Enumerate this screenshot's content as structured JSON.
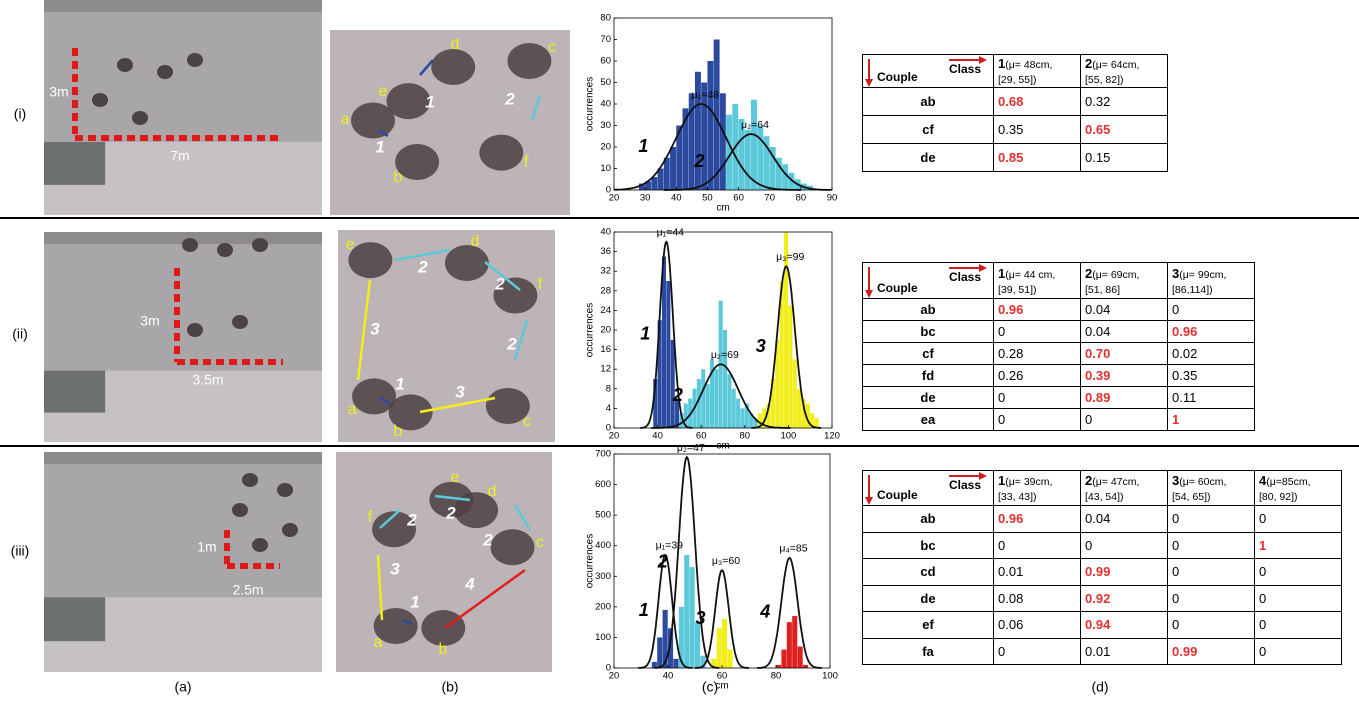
{
  "captions": [
    "(a)",
    "(b)",
    "(c)",
    "(d)"
  ],
  "rows": [
    {
      "label": "(i)",
      "scene": {
        "dims": [
          "3m",
          "7m"
        ]
      },
      "closeup": {
        "people": [
          "d",
          "c",
          "e",
          "a",
          "b",
          "f"
        ],
        "classes": [
          "1",
          "2",
          "1"
        ]
      },
      "table": {
        "corner": [
          "Class",
          "Couple"
        ],
        "columns": [
          {
            "num": "1",
            "desc": "(μ= 48cm,",
            "range": "[29, 55])"
          },
          {
            "num": "2",
            "desc": "(μ= 64cm,",
            "range": "[55, 82])"
          }
        ],
        "rows": [
          {
            "couple": "ab",
            "values": [
              "0.68",
              "0.32"
            ],
            "highlight": 0
          },
          {
            "couple": "cf",
            "values": [
              "0.35",
              "0.65"
            ],
            "highlight": 1
          },
          {
            "couple": "de",
            "values": [
              "0.85",
              "0.15"
            ],
            "highlight": 0
          }
        ]
      }
    },
    {
      "label": "(ii)",
      "scene": {
        "dims": [
          "3m",
          "3.5m"
        ]
      },
      "closeup": {
        "people": [
          "e",
          "d",
          "f",
          "a",
          "b",
          "c"
        ],
        "classes": [
          "2",
          "2",
          "2",
          "3",
          "1",
          "3"
        ]
      },
      "table": {
        "corner": [
          "Class",
          "Couple"
        ],
        "columns": [
          {
            "num": "1",
            "desc": "(μ= 44 cm,",
            "range": "[39, 51])"
          },
          {
            "num": "2",
            "desc": "(μ= 69cm,",
            "range": "[51, 86]"
          },
          {
            "num": "3",
            "desc": "(μ= 99cm,",
            "range": "[86,114])"
          }
        ],
        "rows": [
          {
            "couple": "ab",
            "values": [
              "0.96",
              "0.04",
              "0"
            ],
            "highlight": 0
          },
          {
            "couple": "bc",
            "values": [
              "0",
              "0.04",
              "0.96"
            ],
            "highlight": 2
          },
          {
            "couple": "cf",
            "values": [
              "0.28",
              "0.70",
              "0.02"
            ],
            "highlight": 1
          },
          {
            "couple": "fd",
            "values": [
              "0.26",
              "0.39",
              "0.35"
            ],
            "highlight": 1
          },
          {
            "couple": "de",
            "values": [
              "0",
              "0.89",
              "0.11"
            ],
            "highlight": 1
          },
          {
            "couple": "ea",
            "values": [
              "0",
              "0",
              "1"
            ],
            "highlight": 2
          }
        ]
      }
    },
    {
      "label": "(iii)",
      "scene": {
        "dims": [
          "1m",
          "2.5m"
        ]
      },
      "closeup": {
        "people": [
          "e",
          "d",
          "c",
          "f",
          "a",
          "b"
        ],
        "classes": [
          "2",
          "2",
          "2",
          "4",
          "3",
          "1"
        ]
      },
      "table": {
        "corner": [
          "Class",
          "Couple"
        ],
        "columns": [
          {
            "num": "1",
            "desc": "(μ= 39cm,",
            "range": "[33, 43])"
          },
          {
            "num": "2",
            "desc": "(μ= 47cm,",
            "range": "[43, 54])"
          },
          {
            "num": "3",
            "desc": "(μ= 60cm,",
            "range": "[54, 65])"
          },
          {
            "num": "4",
            "desc": "(μ=85cm,",
            "range": "[80, 92])"
          }
        ],
        "rows": [
          {
            "couple": "ab",
            "values": [
              "0.96",
              "0.04",
              "0",
              "0"
            ],
            "highlight": 0
          },
          {
            "couple": "bc",
            "values": [
              "0",
              "0",
              "0",
              "1"
            ],
            "highlight": 3
          },
          {
            "couple": "cd",
            "values": [
              "0.01",
              "0.99",
              "0",
              "0"
            ],
            "highlight": 1
          },
          {
            "couple": "de",
            "values": [
              "0.08",
              "0.92",
              "0",
              "0"
            ],
            "highlight": 1
          },
          {
            "couple": "ef",
            "values": [
              "0.06",
              "0.94",
              "0",
              "0"
            ],
            "highlight": 1
          },
          {
            "couple": "fa",
            "values": [
              "0",
              "0.01",
              "0.99",
              "0"
            ],
            "highlight": 2
          }
        ]
      }
    }
  ],
  "chart_data": [
    {
      "type": "histogram",
      "xlabel": "cm",
      "ylabel": "occurrences",
      "xlim": [
        20,
        90
      ],
      "xticks": [
        20,
        30,
        40,
        50,
        60,
        70,
        80,
        90
      ],
      "ylim": [
        0,
        80
      ],
      "yticks": [
        0,
        10,
        20,
        30,
        40,
        50,
        60,
        70,
        80
      ],
      "series": [
        {
          "color": "#2b4aa0",
          "bins": [
            28,
            30,
            32,
            34,
            36,
            38,
            40,
            42,
            44,
            46,
            48,
            50,
            52,
            54,
            56
          ],
          "counts": [
            3,
            4,
            6,
            10,
            15,
            20,
            30,
            38,
            45,
            55,
            50,
            60,
            70,
            45
          ]
        },
        {
          "color": "#5cc9db",
          "bins": [
            56,
            58,
            60,
            62,
            64,
            66,
            68,
            70,
            72,
            74,
            76,
            78,
            80,
            82,
            84
          ],
          "counts": [
            35,
            40,
            33,
            28,
            42,
            30,
            25,
            20,
            15,
            12,
            8,
            5,
            3,
            2
          ]
        }
      ],
      "curves": [
        {
          "class": "1",
          "label": "μ₁=48",
          "mean": 48,
          "sd": 8,
          "peak": 40
        },
        {
          "class": "2",
          "label": "μ₂=64",
          "mean": 64,
          "sd": 7,
          "peak": 26
        }
      ]
    },
    {
      "type": "histogram",
      "xlabel": "cm",
      "ylabel": "occurrences",
      "xlim": [
        20,
        120
      ],
      "xticks": [
        20,
        40,
        60,
        80,
        100,
        120
      ],
      "ylim": [
        0,
        40
      ],
      "yticks": [
        0,
        4,
        8,
        12,
        16,
        20,
        24,
        28,
        32,
        36,
        40
      ],
      "series": [
        {
          "color": "#2b4aa0",
          "bins": [
            38,
            40,
            42,
            44,
            46,
            48,
            50
          ],
          "counts": [
            10,
            22,
            35,
            30,
            18,
            6
          ]
        },
        {
          "color": "#5cc9db",
          "bins": [
            50,
            52,
            54,
            56,
            58,
            60,
            62,
            64,
            66,
            68,
            70,
            72,
            74,
            76,
            78,
            80,
            82,
            84,
            86
          ],
          "counts": [
            3,
            5,
            6,
            8,
            10,
            12,
            9,
            14,
            12,
            26,
            20,
            11,
            8,
            6,
            4,
            5,
            3,
            2
          ]
        },
        {
          "color": "#f2ee1c",
          "bins": [
            86,
            88,
            90,
            92,
            94,
            96,
            98,
            100,
            102,
            104,
            106,
            108,
            110,
            112,
            114
          ],
          "counts": [
            3,
            4,
            5,
            10,
            18,
            30,
            40,
            25,
            14,
            8,
            6,
            5,
            3,
            2
          ]
        }
      ],
      "curves": [
        {
          "class": "1",
          "label": "μ₁=44",
          "mean": 44,
          "sd": 3,
          "peak": 38
        },
        {
          "class": "2",
          "label": "μ₂=69",
          "mean": 69,
          "sd": 8,
          "peak": 13
        },
        {
          "class": "3",
          "label": "μ₃=99",
          "mean": 99,
          "sd": 4,
          "peak": 33
        }
      ]
    },
    {
      "type": "histogram",
      "xlabel": "cm",
      "ylabel": "occurrences",
      "xlim": [
        20,
        100
      ],
      "xticks": [
        20,
        40,
        60,
        80,
        100
      ],
      "ylim": [
        0,
        700
      ],
      "yticks": [
        0,
        100,
        200,
        300,
        400,
        500,
        600,
        700
      ],
      "series": [
        {
          "color": "#2b4aa0",
          "bins": [
            34,
            36,
            38,
            40,
            42,
            44
          ],
          "counts": [
            20,
            100,
            190,
            130,
            30
          ]
        },
        {
          "color": "#5cc9db",
          "bins": [
            44,
            46,
            48,
            50,
            52,
            54
          ],
          "counts": [
            200,
            370,
            330,
            150,
            40
          ]
        },
        {
          "color": "#f2ee1c",
          "bins": [
            56,
            58,
            60,
            62,
            64
          ],
          "counts": [
            30,
            130,
            160,
            60
          ]
        },
        {
          "color": "#e02020",
          "bins": [
            80,
            82,
            84,
            86,
            88,
            90,
            92
          ],
          "counts": [
            10,
            60,
            150,
            170,
            70,
            10
          ]
        }
      ],
      "curves": [
        {
          "class": "1",
          "label": "μ₁=39",
          "mean": 39,
          "sd": 2.5,
          "peak": 370
        },
        {
          "class": "2",
          "label": "μ₂=47",
          "mean": 47,
          "sd": 3,
          "peak": 690
        },
        {
          "class": "3",
          "label": "μ₃=60",
          "mean": 60,
          "sd": 2.5,
          "peak": 320
        },
        {
          "class": "4",
          "label": "μ₄=85",
          "mean": 85,
          "sd": 3,
          "peak": 360
        }
      ]
    }
  ]
}
